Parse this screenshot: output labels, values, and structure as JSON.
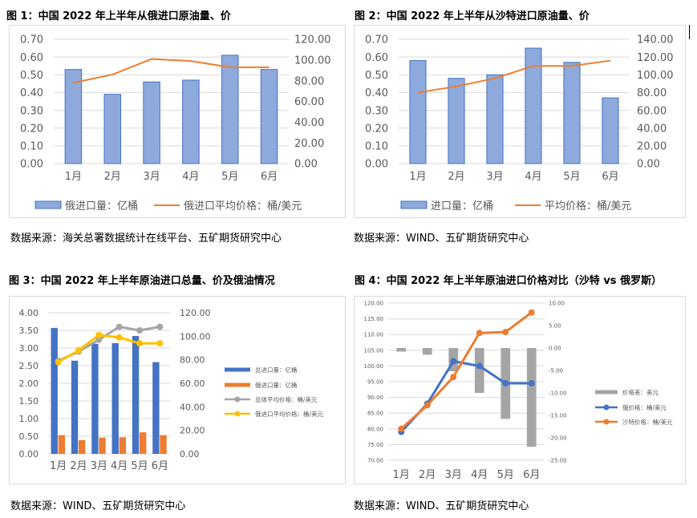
{
  "figures": [
    {
      "title": "图 1：中国 2022 年上半年从俄进口原油量、价",
      "source": "数据来源：海关总署数据统计在线平台、五矿期货研究中心"
    },
    {
      "title": "图 2：中国 2022 年上半年从沙特进口原油量、价",
      "source": "数据来源：WIND、五矿期货研究中心"
    },
    {
      "title": "图 3：中国 2022 年上半年原油进口总量、价及俄油情况",
      "source": "数据来源：WIND、五矿期货研究中心"
    },
    {
      "title": "图 4：中国 2022 年上半年原油进口价格对比（沙特 vs 俄罗斯）",
      "source": "数据来源：WIND、五矿期货研究中心"
    }
  ],
  "chart_data": [
    {
      "type": "bar",
      "categories": [
        "1月",
        "2月",
        "3月",
        "4月",
        "5月",
        "6月"
      ],
      "series": [
        {
          "name": "俄进口量：亿桶",
          "type": "bar",
          "axis": "left",
          "values": [
            0.53,
            0.39,
            0.46,
            0.47,
            0.61,
            0.53
          ],
          "color": "#8ea9db"
        },
        {
          "name": "俄进口平均价格：桶/美元",
          "type": "line",
          "axis": "right",
          "values": [
            78,
            86,
            101,
            99,
            93,
            93
          ],
          "color": "#ed7d31"
        }
      ],
      "ylim": [
        0,
        0.7
      ],
      "ylim_right": [
        0,
        120
      ],
      "yticks": [
        "0.00",
        "0.10",
        "0.20",
        "0.30",
        "0.40",
        "0.50",
        "0.60",
        "0.70"
      ],
      "yticks_right": [
        "0.00",
        "20.00",
        "40.00",
        "60.00",
        "80.00",
        "100.00",
        "120.00"
      ],
      "legend_position": "bottom"
    },
    {
      "type": "bar",
      "categories": [
        "1月",
        "2月",
        "3月",
        "4月",
        "5月",
        "6月"
      ],
      "series": [
        {
          "name": "进口量：亿桶",
          "type": "bar",
          "axis": "left",
          "values": [
            0.58,
            0.48,
            0.5,
            0.65,
            0.57,
            0.37
          ],
          "color": "#8ea9db"
        },
        {
          "name": "平均价格：桶/美元",
          "type": "line",
          "axis": "right",
          "values": [
            80,
            87,
            96,
            110,
            110,
            116
          ],
          "color": "#ed7d31"
        }
      ],
      "ylim": [
        0,
        0.7
      ],
      "ylim_right": [
        0,
        140
      ],
      "yticks": [
        "0.00",
        "0.10",
        "0.20",
        "0.30",
        "0.40",
        "0.50",
        "0.60",
        "0.70"
      ],
      "yticks_right": [
        "0.00",
        "20.00",
        "40.00",
        "60.00",
        "80.00",
        "100.00",
        "120.00",
        "140.00"
      ],
      "legend_position": "bottom"
    },
    {
      "type": "bar",
      "categories": [
        "1月",
        "2月",
        "3月",
        "4月",
        "5月",
        "6月"
      ],
      "series": [
        {
          "name": "总进口量：亿桶",
          "type": "bar",
          "axis": "left",
          "values": [
            3.57,
            2.64,
            3.12,
            3.14,
            3.34,
            2.6
          ],
          "color": "#4472c4"
        },
        {
          "name": "俄进口量：亿桶",
          "type": "bar",
          "axis": "left",
          "values": [
            0.53,
            0.39,
            0.46,
            0.47,
            0.61,
            0.53
          ],
          "color": "#ed7d31"
        },
        {
          "name": "总体平均价格：桶/美元",
          "type": "line",
          "axis": "right",
          "values": [
            79,
            87,
            97,
            108,
            105,
            108
          ],
          "color": "#a5a5a5"
        },
        {
          "name": "俄进口平均价格：桶/美元",
          "type": "line",
          "axis": "right",
          "values": [
            78,
            88,
            101,
            99,
            94,
            94
          ],
          "color": "#ffc000"
        }
      ],
      "ylim": [
        0,
        4
      ],
      "ylim_right": [
        0,
        120
      ],
      "yticks": [
        "0.00",
        "0.50",
        "1.00",
        "1.50",
        "2.00",
        "2.50",
        "3.00",
        "3.50",
        "4.00"
      ],
      "yticks_right": [
        "0.00",
        "20.00",
        "40.00",
        "60.00",
        "80.00",
        "100.00",
        "120.00"
      ],
      "legend_position": "right"
    },
    {
      "type": "line",
      "categories": [
        "1月",
        "2月",
        "3月",
        "4月",
        "5月",
        "6月"
      ],
      "series": [
        {
          "name": "价格差：美元",
          "type": "floating-bar",
          "axis": "right",
          "values": [
            -0.8,
            -1.5,
            -5.2,
            -10.0,
            -15.8,
            -22.0
          ],
          "color": "#a5a5a5"
        },
        {
          "name": "俄价格：桶/美元",
          "type": "line",
          "axis": "left",
          "values": [
            79,
            88,
            101.5,
            100,
            94.5,
            94.5
          ],
          "color": "#4472c4"
        },
        {
          "name": "沙特价格：桶/美元",
          "type": "line",
          "axis": "left",
          "values": [
            80,
            87.5,
            96.5,
            110.5,
            110.8,
            117
          ],
          "color": "#ed7d31"
        }
      ],
      "ylim": [
        70,
        120
      ],
      "ylim_right": [
        -25,
        10
      ],
      "yticks": [
        "70.00",
        "75.00",
        "80.00",
        "85.00",
        "90.00",
        "95.00",
        "100.00",
        "105.00",
        "110.00",
        "115.00",
        "120.00"
      ],
      "yticks_right": [
        "-25.00",
        "-20.00",
        "-15.00",
        "-10.00",
        "-5.00",
        "0.00",
        "5.00",
        "10.00"
      ],
      "legend_position": "right"
    }
  ]
}
